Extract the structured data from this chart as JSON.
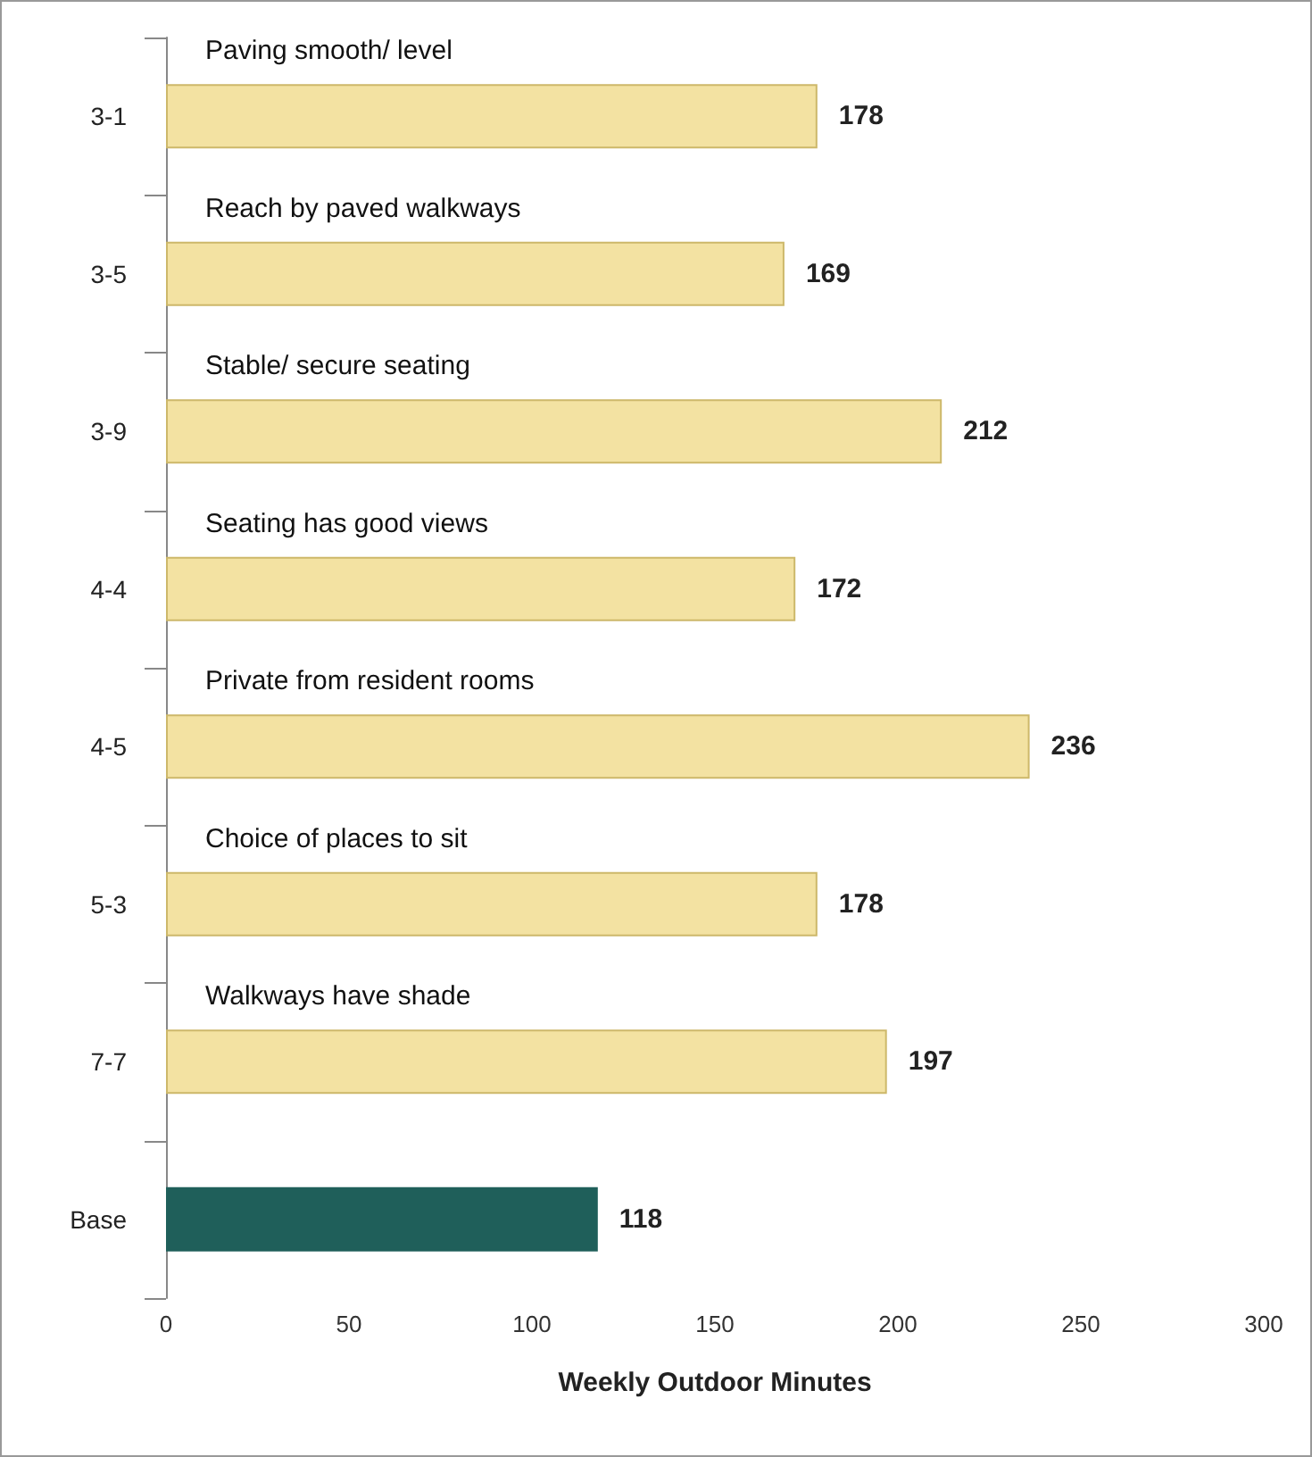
{
  "chart_data": {
    "type": "bar",
    "orientation": "horizontal",
    "xlabel": "Weekly Outdoor Minutes",
    "categories": [
      "3-1",
      "3-5",
      "3-9",
      "4-4",
      "4-5",
      "5-3",
      "7-7",
      "Base"
    ],
    "values": [
      178,
      169,
      212,
      172,
      236,
      178,
      197,
      118
    ],
    "colors": [
      "#f3e2a2",
      "#f3e2a2",
      "#f3e2a2",
      "#f3e2a2",
      "#f3e2a2",
      "#f3e2a2",
      "#f3e2a2",
      "#1f5f5a"
    ],
    "data_labels": true,
    "xlim": [
      0,
      300
    ],
    "xticks": [
      0,
      50,
      100,
      150,
      200,
      250,
      300
    ],
    "grid": false,
    "annotations": [
      "Paving smooth/ level",
      "Reach by paved walkways",
      "Stable/ secure seating",
      "Seating has good views",
      "Private from resident rooms",
      "Choice of places to sit",
      "Walkways have shade"
    ]
  }
}
